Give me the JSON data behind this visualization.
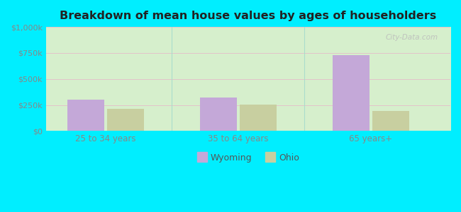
{
  "title": "Breakdown of mean house values by ages of householders",
  "categories": [
    "25 to 34 years",
    "35 to 64 years",
    "65 years+"
  ],
  "wyoming_values": [
    300000,
    320000,
    730000
  ],
  "ohio_values": [
    215000,
    255000,
    195000
  ],
  "wyoming_color": "#c4a8d8",
  "ohio_color": "#c8cfa0",
  "ylim": [
    0,
    1000000
  ],
  "yticks": [
    0,
    250000,
    500000,
    750000,
    1000000
  ],
  "ytick_labels": [
    "$0",
    "$250k",
    "$500k",
    "$750k",
    "$1,000k"
  ],
  "background_outer": "#00eeff",
  "bar_width": 0.28,
  "legend_labels": [
    "Wyoming",
    "Ohio"
  ],
  "watermark": "City-Data.com",
  "grid_color": "#e8b0c8",
  "divider_color": "#aaddcc"
}
